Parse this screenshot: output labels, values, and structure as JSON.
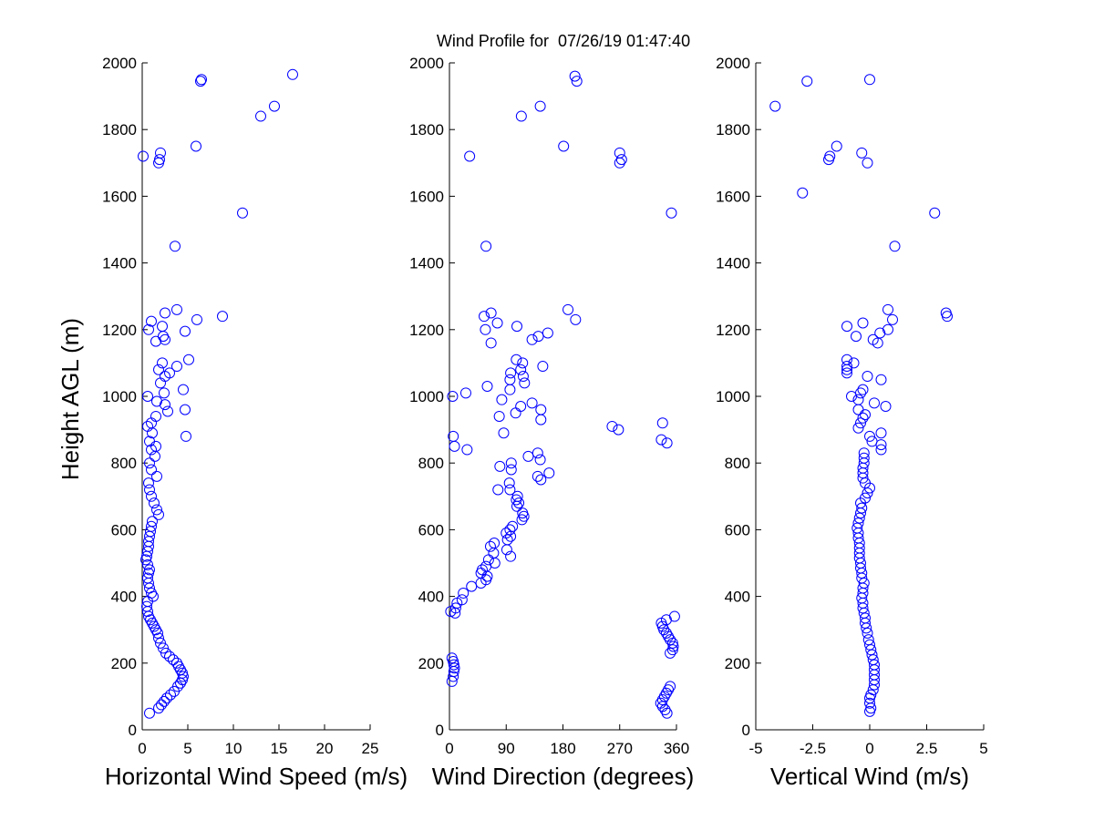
{
  "page": {
    "title": "Wind Profile for  07/26/19 01:47:40"
  },
  "colors": {
    "marker": "#0000ff",
    "axis": "#000000",
    "background": "#ffffff"
  },
  "chart_data": [
    {
      "type": "scatter",
      "id": "speed",
      "xlabel": "Horizontal Wind Speed (m/s)",
      "ylabel": "Height AGL (m)",
      "xlim": [
        0,
        25
      ],
      "ylim": [
        0,
        2000
      ],
      "xticks": [
        0,
        5,
        10,
        15,
        20,
        25
      ],
      "xtick_labels": [
        "0",
        "5",
        "10",
        "15",
        "20",
        "25"
      ],
      "yticks": [
        0,
        200,
        400,
        600,
        800,
        1000,
        1200,
        1400,
        1600,
        1800,
        2000
      ],
      "ytick_labels": [
        "0",
        "200",
        "400",
        "600",
        "800",
        "1000",
        "1200",
        "1400",
        "1600",
        "1800",
        "2000"
      ],
      "grid": false,
      "marker": "circle-open",
      "points": [
        [
          0.8,
          50
        ],
        [
          1.8,
          65
        ],
        [
          2.1,
          75
        ],
        [
          2.4,
          85
        ],
        [
          2.7,
          95
        ],
        [
          3.1,
          105
        ],
        [
          3.5,
          115
        ],
        [
          3.9,
          130
        ],
        [
          4.2,
          140
        ],
        [
          4.4,
          150
        ],
        [
          4.5,
          160
        ],
        [
          4.4,
          170
        ],
        [
          4.2,
          180
        ],
        [
          4.0,
          190
        ],
        [
          3.8,
          200
        ],
        [
          3.4,
          210
        ],
        [
          3.0,
          220
        ],
        [
          2.6,
          230
        ],
        [
          2.3,
          245
        ],
        [
          2.0,
          260
        ],
        [
          1.8,
          275
        ],
        [
          1.7,
          290
        ],
        [
          1.5,
          300
        ],
        [
          1.3,
          310
        ],
        [
          1.1,
          320
        ],
        [
          0.9,
          330
        ],
        [
          0.7,
          340
        ],
        [
          0.6,
          355
        ],
        [
          0.5,
          370
        ],
        [
          0.6,
          385
        ],
        [
          1.2,
          400
        ],
        [
          1.0,
          410
        ],
        [
          0.8,
          425
        ],
        [
          0.7,
          440
        ],
        [
          0.6,
          455
        ],
        [
          0.7,
          470
        ],
        [
          0.8,
          480
        ],
        [
          0.6,
          495
        ],
        [
          0.4,
          510
        ],
        [
          0.5,
          520
        ],
        [
          0.6,
          535
        ],
        [
          0.7,
          550
        ],
        [
          0.7,
          565
        ],
        [
          0.8,
          580
        ],
        [
          0.9,
          595
        ],
        [
          1.0,
          610
        ],
        [
          1.1,
          625
        ],
        [
          1.8,
          645
        ],
        [
          1.6,
          660
        ],
        [
          1.3,
          680
        ],
        [
          1.0,
          700
        ],
        [
          0.8,
          720
        ],
        [
          0.7,
          740
        ],
        [
          1.6,
          760
        ],
        [
          1.0,
          780
        ],
        [
          0.8,
          800
        ],
        [
          1.4,
          820
        ],
        [
          1.0,
          840
        ],
        [
          1.5,
          850
        ],
        [
          0.8,
          865
        ],
        [
          4.8,
          880
        ],
        [
          1.1,
          890
        ],
        [
          0.6,
          910
        ],
        [
          1.0,
          920
        ],
        [
          1.5,
          940
        ],
        [
          2.8,
          955
        ],
        [
          4.7,
          960
        ],
        [
          2.5,
          975
        ],
        [
          1.6,
          985
        ],
        [
          0.6,
          1000
        ],
        [
          2.4,
          1010
        ],
        [
          4.5,
          1020
        ],
        [
          2.0,
          1040
        ],
        [
          2.5,
          1060
        ],
        [
          3.0,
          1070
        ],
        [
          1.8,
          1080
        ],
        [
          3.8,
          1090
        ],
        [
          2.2,
          1100
        ],
        [
          5.1,
          1110
        ],
        [
          2.5,
          1170
        ],
        [
          1.5,
          1165
        ],
        [
          2.3,
          1180
        ],
        [
          0.7,
          1200
        ],
        [
          4.7,
          1195
        ],
        [
          2.2,
          1210
        ],
        [
          1.0,
          1225
        ],
        [
          6.0,
          1230
        ],
        [
          8.8,
          1240
        ],
        [
          2.5,
          1250
        ],
        [
          3.8,
          1260
        ],
        [
          3.6,
          1450
        ],
        [
          11.0,
          1550
        ],
        [
          1.8,
          1700
        ],
        [
          1.9,
          1710
        ],
        [
          0.1,
          1720
        ],
        [
          2.0,
          1730
        ],
        [
          5.9,
          1750
        ],
        [
          13.0,
          1840
        ],
        [
          14.5,
          1870
        ],
        [
          6.4,
          1945
        ],
        [
          6.5,
          1950
        ],
        [
          16.5,
          1965
        ]
      ]
    },
    {
      "type": "scatter",
      "id": "direction",
      "xlabel": "Wind Direction (degrees)",
      "xlim": [
        0,
        360
      ],
      "ylim": [
        0,
        2000
      ],
      "xticks": [
        0,
        90,
        180,
        270,
        360
      ],
      "xtick_labels": [
        "0",
        "90",
        "180",
        "270",
        "360"
      ],
      "yticks": [
        0,
        200,
        400,
        600,
        800,
        1000,
        1200,
        1400,
        1600,
        1800,
        2000
      ],
      "ytick_labels": [
        "0",
        "200",
        "400",
        "600",
        "800",
        "1000",
        "1200",
        "1400",
        "1600",
        "1800",
        "2000"
      ],
      "grid": false,
      "marker": "circle-open",
      "points": [
        [
          4,
          145
        ],
        [
          6,
          160
        ],
        [
          7,
          175
        ],
        [
          8,
          185
        ],
        [
          7,
          195
        ],
        [
          6,
          205
        ],
        [
          4,
          215
        ],
        [
          345,
          50
        ],
        [
          342,
          60
        ],
        [
          338,
          70
        ],
        [
          335,
          80
        ],
        [
          338,
          90
        ],
        [
          341,
          100
        ],
        [
          344,
          110
        ],
        [
          347,
          120
        ],
        [
          350,
          130
        ],
        [
          350,
          230
        ],
        [
          354,
          240
        ],
        [
          355,
          250
        ],
        [
          354,
          260
        ],
        [
          350,
          270
        ],
        [
          347,
          280
        ],
        [
          344,
          290
        ],
        [
          340,
          300
        ],
        [
          338,
          310
        ],
        [
          336,
          320
        ],
        [
          344,
          330
        ],
        [
          357,
          340
        ],
        [
          2,
          355
        ],
        [
          9,
          350
        ],
        [
          10,
          365
        ],
        [
          12,
          380
        ],
        [
          20,
          390
        ],
        [
          22,
          410
        ],
        [
          35,
          430
        ],
        [
          50,
          440
        ],
        [
          58,
          450
        ],
        [
          60,
          460
        ],
        [
          50,
          470
        ],
        [
          52,
          480
        ],
        [
          58,
          490
        ],
        [
          72,
          500
        ],
        [
          62,
          510
        ],
        [
          97,
          520
        ],
        [
          70,
          530
        ],
        [
          91,
          540
        ],
        [
          65,
          550
        ],
        [
          71,
          560
        ],
        [
          92,
          570
        ],
        [
          97,
          580
        ],
        [
          90,
          590
        ],
        [
          96,
          600
        ],
        [
          100,
          610
        ],
        [
          115,
          630
        ],
        [
          118,
          640
        ],
        [
          116,
          650
        ],
        [
          107,
          670
        ],
        [
          110,
          680
        ],
        [
          106,
          690
        ],
        [
          108,
          700
        ],
        [
          96,
          720
        ],
        [
          77,
          720
        ],
        [
          95,
          740
        ],
        [
          145,
          750
        ],
        [
          140,
          760
        ],
        [
          158,
          770
        ],
        [
          98,
          780
        ],
        [
          80,
          790
        ],
        [
          98,
          800
        ],
        [
          144,
          810
        ],
        [
          125,
          820
        ],
        [
          140,
          830
        ],
        [
          28,
          840
        ],
        [
          8,
          850
        ],
        [
          336,
          870
        ],
        [
          345,
          860
        ],
        [
          6,
          880
        ],
        [
          86,
          890
        ],
        [
          268,
          900
        ],
        [
          258,
          910
        ],
        [
          338,
          920
        ],
        [
          145,
          930
        ],
        [
          79,
          940
        ],
        [
          105,
          950
        ],
        [
          145,
          960
        ],
        [
          113,
          970
        ],
        [
          131,
          980
        ],
        [
          83,
          990
        ],
        [
          5,
          1000
        ],
        [
          26,
          1010
        ],
        [
          96,
          1020
        ],
        [
          60,
          1030
        ],
        [
          119,
          1040
        ],
        [
          96,
          1050
        ],
        [
          117,
          1060
        ],
        [
          97,
          1070
        ],
        [
          113,
          1080
        ],
        [
          148,
          1090
        ],
        [
          116,
          1100
        ],
        [
          106,
          1110
        ],
        [
          66,
          1160
        ],
        [
          131,
          1170
        ],
        [
          141,
          1180
        ],
        [
          156,
          1190
        ],
        [
          57,
          1200
        ],
        [
          107,
          1210
        ],
        [
          76,
          1220
        ],
        [
          200,
          1230
        ],
        [
          55,
          1240
        ],
        [
          66,
          1250
        ],
        [
          188,
          1260
        ],
        [
          58,
          1450
        ],
        [
          352,
          1550
        ],
        [
          270,
          1700
        ],
        [
          273,
          1710
        ],
        [
          32,
          1720
        ],
        [
          270,
          1730
        ],
        [
          181,
          1750
        ],
        [
          114,
          1840
        ],
        [
          144,
          1870
        ],
        [
          202,
          1945
        ],
        [
          199,
          1960
        ]
      ]
    },
    {
      "type": "scatter",
      "id": "vertical",
      "xlabel": "Vertical Wind (m/s)",
      "xlim": [
        -5,
        5
      ],
      "ylim": [
        0,
        2000
      ],
      "xticks": [
        -5,
        -2.5,
        0,
        2.5,
        5
      ],
      "xtick_labels": [
        "-5",
        "-2.5",
        "0",
        "2.5",
        "5"
      ],
      "yticks": [
        0,
        200,
        400,
        600,
        800,
        1000,
        1200,
        1400,
        1600,
        1800,
        2000
      ],
      "ytick_labels": [
        "0",
        "200",
        "400",
        "600",
        "800",
        "1000",
        "1200",
        "1400",
        "1600",
        "1800",
        "2000"
      ],
      "grid": false,
      "marker": "circle-open",
      "points": [
        [
          0.0,
          55
        ],
        [
          0.05,
          65
        ],
        [
          0.0,
          80
        ],
        [
          0.0,
          95
        ],
        [
          0.05,
          105
        ],
        [
          0.15,
          120
        ],
        [
          0.2,
          135
        ],
        [
          0.2,
          150
        ],
        [
          0.2,
          165
        ],
        [
          0.2,
          180
        ],
        [
          0.2,
          195
        ],
        [
          0.15,
          210
        ],
        [
          0.1,
          225
        ],
        [
          0.05,
          240
        ],
        [
          0.0,
          255
        ],
        [
          -0.05,
          270
        ],
        [
          -0.1,
          290
        ],
        [
          -0.15,
          305
        ],
        [
          -0.2,
          320
        ],
        [
          -0.2,
          335
        ],
        [
          -0.25,
          350
        ],
        [
          -0.3,
          365
        ],
        [
          -0.3,
          380
        ],
        [
          -0.35,
          395
        ],
        [
          -0.3,
          410
        ],
        [
          -0.3,
          425
        ],
        [
          -0.25,
          440
        ],
        [
          -0.35,
          455
        ],
        [
          -0.35,
          470
        ],
        [
          -0.4,
          485
        ],
        [
          -0.4,
          500
        ],
        [
          -0.45,
          515
        ],
        [
          -0.45,
          530
        ],
        [
          -0.45,
          545
        ],
        [
          -0.45,
          560
        ],
        [
          -0.5,
          575
        ],
        [
          -0.5,
          590
        ],
        [
          -0.55,
          605
        ],
        [
          -0.5,
          620
        ],
        [
          -0.45,
          635
        ],
        [
          -0.4,
          650
        ],
        [
          -0.35,
          665
        ],
        [
          -0.4,
          680
        ],
        [
          -0.2,
          695
        ],
        [
          -0.1,
          710
        ],
        [
          0.0,
          725
        ],
        [
          -0.2,
          740
        ],
        [
          -0.3,
          755
        ],
        [
          -0.3,
          770
        ],
        [
          -0.3,
          785
        ],
        [
          -0.25,
          800
        ],
        [
          -0.25,
          815
        ],
        [
          -0.25,
          830
        ],
        [
          0.5,
          840
        ],
        [
          0.5,
          855
        ],
        [
          0.1,
          865
        ],
        [
          0.0,
          880
        ],
        [
          0.5,
          890
        ],
        [
          -0.5,
          905
        ],
        [
          -0.4,
          920
        ],
        [
          -0.3,
          935
        ],
        [
          -0.2,
          945
        ],
        [
          -0.5,
          960
        ],
        [
          0.7,
          970
        ],
        [
          0.2,
          980
        ],
        [
          -0.5,
          990
        ],
        [
          -0.8,
          1000
        ],
        [
          -0.4,
          1010
        ],
        [
          -0.3,
          1020
        ],
        [
          0.5,
          1050
        ],
        [
          -0.1,
          1060
        ],
        [
          -1.0,
          1070
        ],
        [
          -1.0,
          1080
        ],
        [
          -1.0,
          1090
        ],
        [
          -0.7,
          1100
        ],
        [
          -1.0,
          1110
        ],
        [
          0.35,
          1160
        ],
        [
          0.15,
          1170
        ],
        [
          -0.6,
          1180
        ],
        [
          0.45,
          1190
        ],
        [
          0.8,
          1200
        ],
        [
          -1.0,
          1210
        ],
        [
          -0.3,
          1220
        ],
        [
          1.0,
          1230
        ],
        [
          3.4,
          1240
        ],
        [
          3.35,
          1250
        ],
        [
          0.8,
          1260
        ],
        [
          1.1,
          1450
        ],
        [
          2.85,
          1550
        ],
        [
          -2.95,
          1610
        ],
        [
          -0.1,
          1700
        ],
        [
          -1.8,
          1710
        ],
        [
          -1.75,
          1720
        ],
        [
          -0.35,
          1730
        ],
        [
          -1.45,
          1750
        ],
        [
          -4.15,
          1870
        ],
        [
          -2.75,
          1945
        ],
        [
          0.0,
          1950
        ]
      ]
    }
  ]
}
